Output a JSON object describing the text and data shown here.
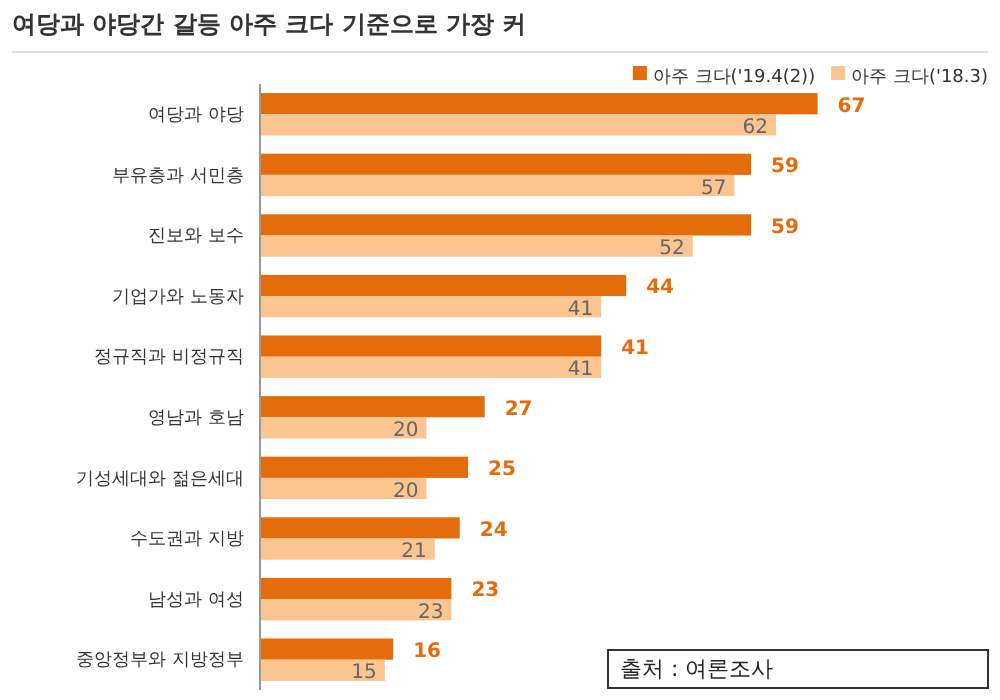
{
  "chart_data": {
    "type": "bar",
    "orientation": "horizontal",
    "title": "여당과 야당간 갈등 아주 크다 기준으로 가장 커",
    "categories": [
      "여당과 야당",
      "부유층과 서민층",
      "진보와 보수",
      "기업가와 노동자",
      "정규직과 비정규직",
      "영남과 호남",
      "기성세대와 젊은세대",
      "수도권과 지방",
      "남성과 여성",
      "중앙정부와 지방정부"
    ],
    "series": [
      {
        "name": "아주 크다('19.4(2))",
        "color": "#e46c0a",
        "values": [
          67,
          59,
          59,
          44,
          41,
          27,
          25,
          24,
          23,
          16
        ]
      },
      {
        "name": "아주 크다('18.3)",
        "color": "#fac590",
        "values": [
          62,
          57,
          52,
          41,
          41,
          20,
          20,
          21,
          23,
          15
        ]
      }
    ],
    "data_labels": true,
    "legend": "top right",
    "annotations": [
      "출처 : 여론조사"
    ]
  }
}
